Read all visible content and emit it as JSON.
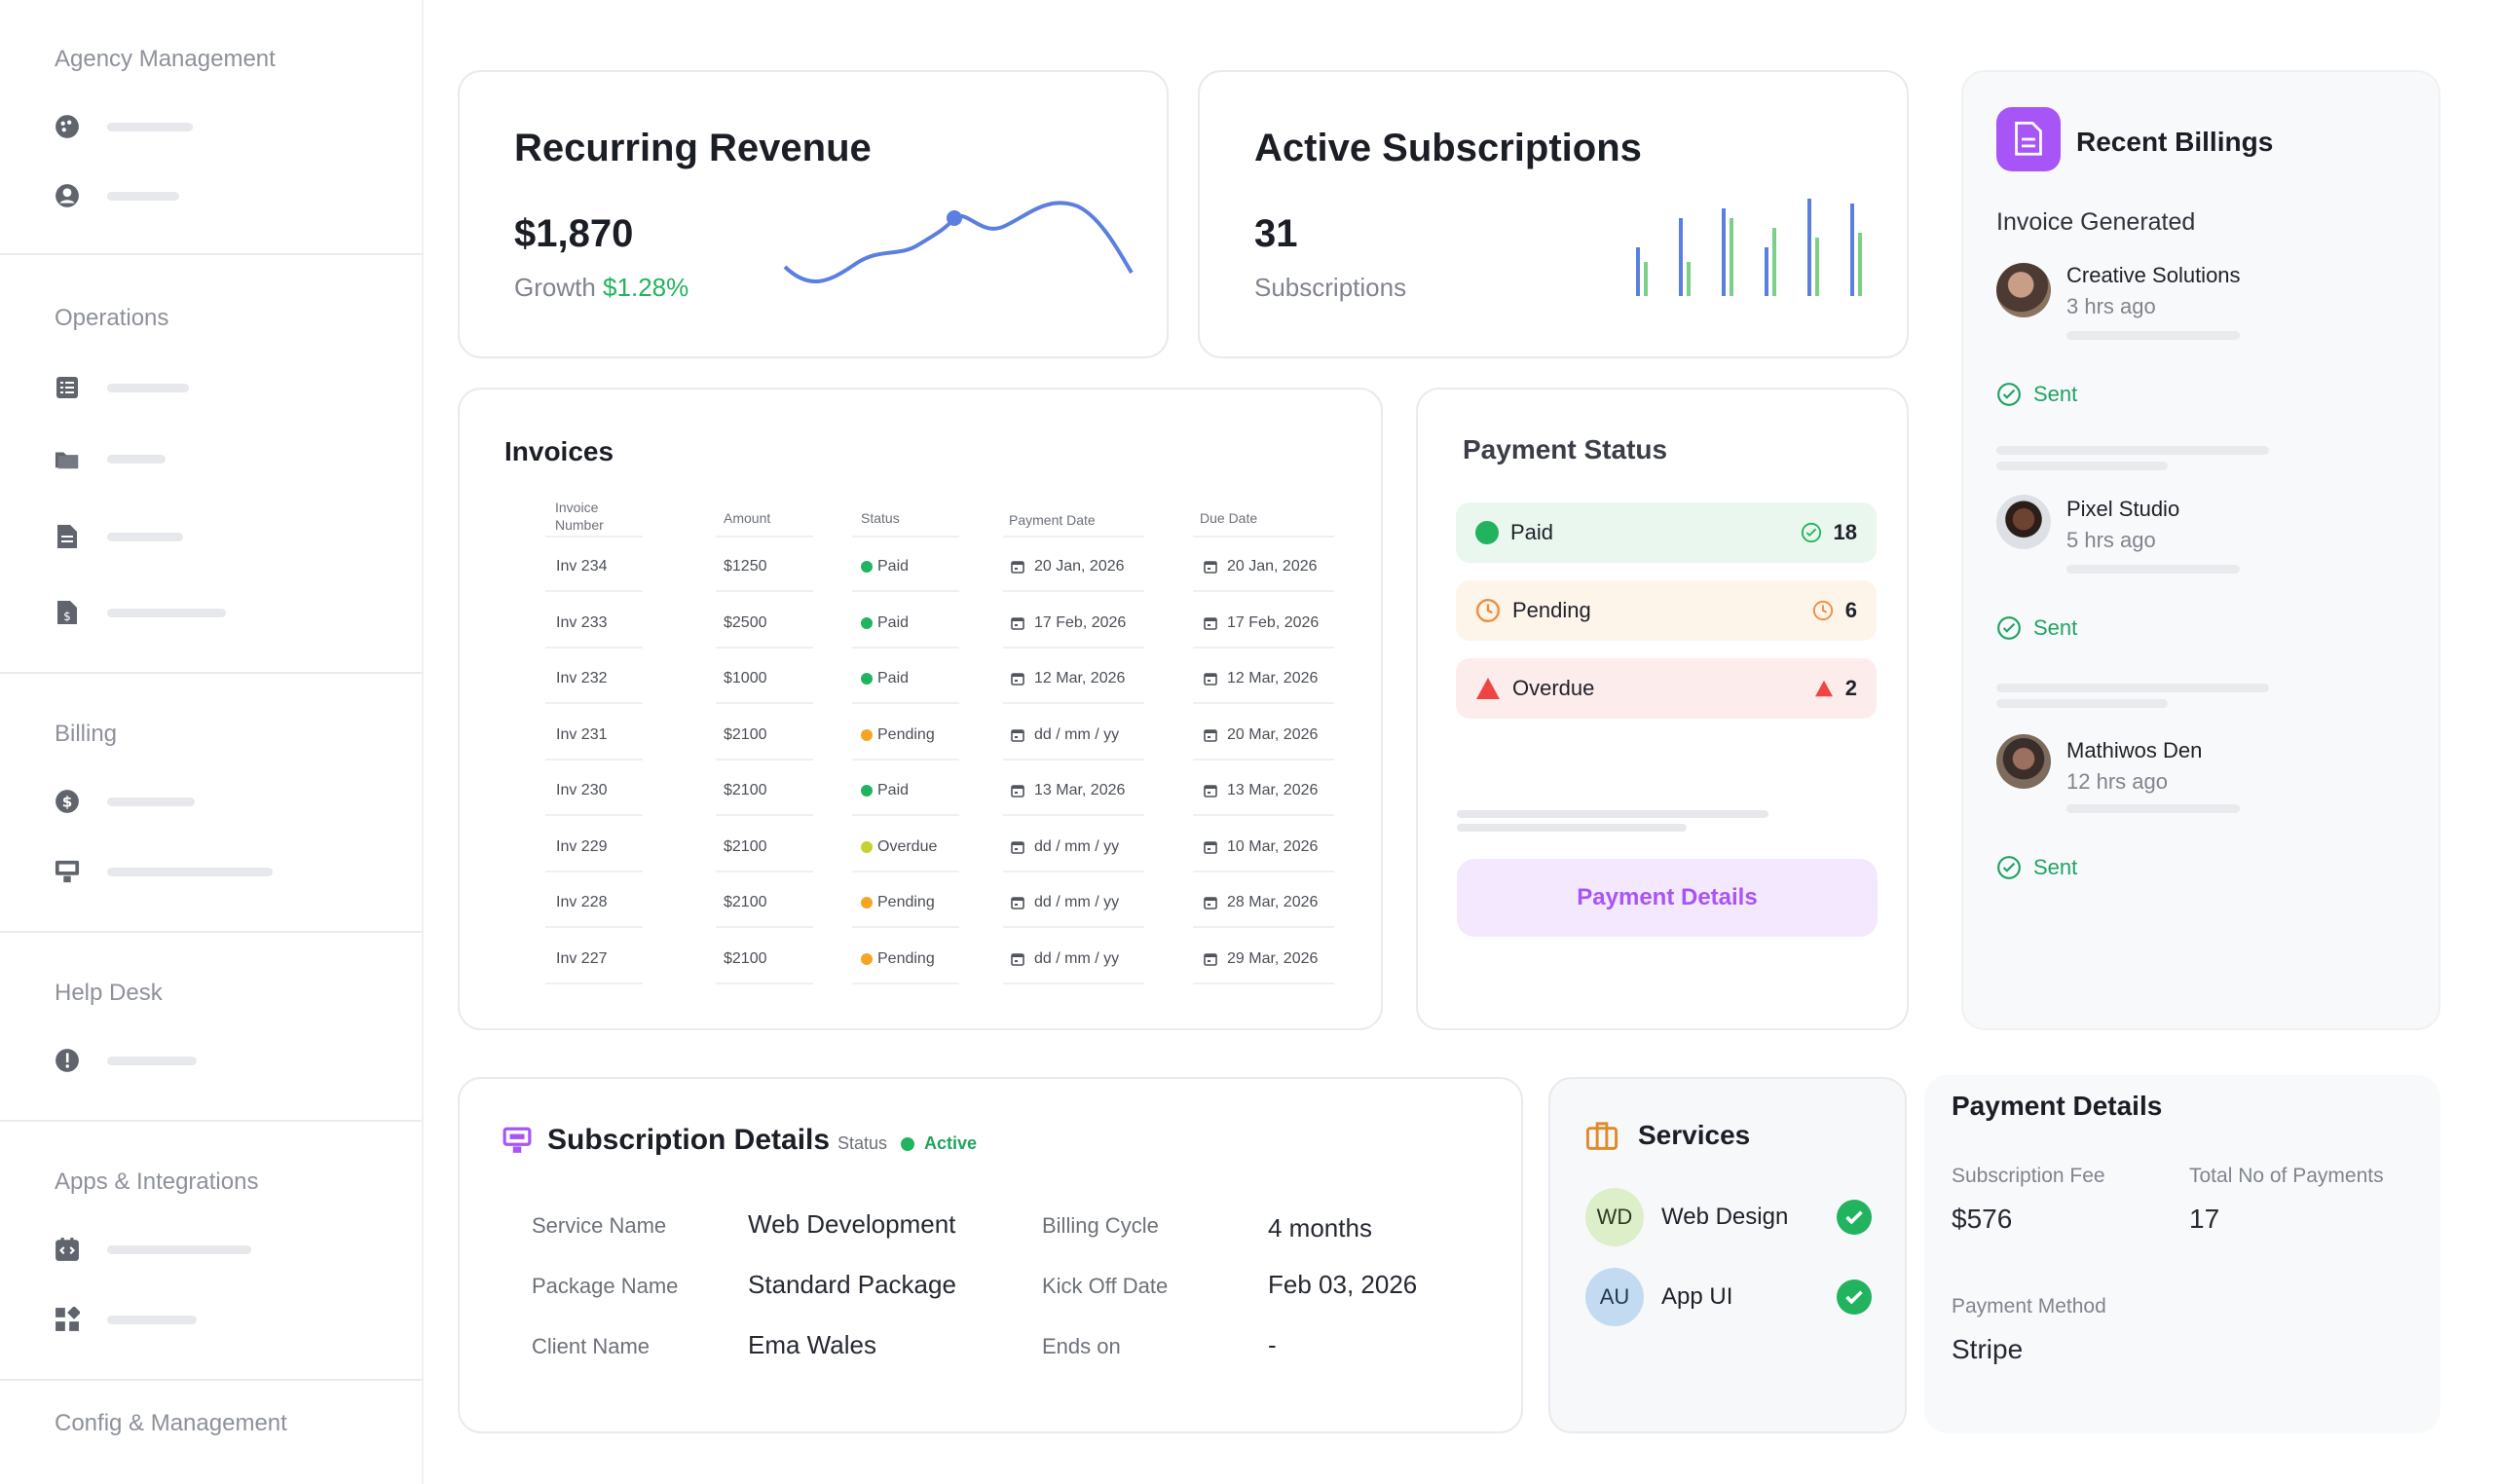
{
  "sidebar": {
    "sections": [
      {
        "title": "Agency Management"
      },
      {
        "title": "Operations"
      },
      {
        "title": "Billing"
      },
      {
        "title": "Help Desk"
      },
      {
        "title": "Apps & Integrations"
      },
      {
        "title": "Config & Management"
      }
    ]
  },
  "recurring": {
    "title": "Recurring Revenue",
    "amount": "$1,870",
    "growth_label": "Growth",
    "growth_value": "$1.28%"
  },
  "subscriptions": {
    "title": "Active Subscriptions",
    "count": "31",
    "label": "Subscriptions"
  },
  "billings": {
    "title": "Recent Billings",
    "subtitle": "Invoice Generated",
    "items": [
      {
        "name": "Creative Solutions",
        "time": "3 hrs ago",
        "status": "Sent"
      },
      {
        "name": "Pixel Studio",
        "time": "5 hrs ago",
        "status": "Sent"
      },
      {
        "name": "Mathiwos Den",
        "time": "12 hrs ago",
        "status": "Sent"
      }
    ]
  },
  "invoices": {
    "title": "Invoices",
    "columns": [
      "Invoice Number",
      "Amount",
      "Status",
      "Payment Date",
      "Due Date"
    ],
    "rows": [
      {
        "number": "Inv 234",
        "amount": "$1250",
        "status": "Paid",
        "payment_date": "20 Jan, 2026",
        "due_date": "20 Jan, 2026"
      },
      {
        "number": "Inv 233",
        "amount": "$2500",
        "status": "Paid",
        "payment_date": "17 Feb, 2026",
        "due_date": "17 Feb, 2026"
      },
      {
        "number": "Inv 232",
        "amount": "$1000",
        "status": "Paid",
        "payment_date": "12 Mar, 2026",
        "due_date": "12 Mar, 2026"
      },
      {
        "number": "Inv 231",
        "amount": "$2100",
        "status": "Pending",
        "payment_date": "dd / mm / yy",
        "due_date": "20 Mar, 2026"
      },
      {
        "number": "Inv 230",
        "amount": "$2100",
        "status": "Paid",
        "payment_date": "13 Mar, 2026",
        "due_date": "13 Mar, 2026"
      },
      {
        "number": "Inv 229",
        "amount": "$2100",
        "status": "Overdue",
        "payment_date": "dd / mm / yy",
        "due_date": "10 Mar, 2026"
      },
      {
        "number": "Inv 228",
        "amount": "$2100",
        "status": "Pending",
        "payment_date": "dd / mm / yy",
        "due_date": "28 Mar, 2026"
      },
      {
        "number": "Inv 227",
        "amount": "$2100",
        "status": "Pending",
        "payment_date": "dd / mm / yy",
        "due_date": "29 Mar, 2026"
      }
    ]
  },
  "payment_status": {
    "title": "Payment Status",
    "paid": {
      "label": "Paid",
      "count": "18"
    },
    "pending": {
      "label": "Pending",
      "count": "6"
    },
    "overdue": {
      "label": "Overdue",
      "count": "2"
    },
    "button": "Payment Details"
  },
  "subscription_details": {
    "title": "Subscription Details",
    "status_label": "Status",
    "status_value": "Active",
    "service_name_label": "Service Name",
    "service_name": "Web Development",
    "package_name_label": "Package Name",
    "package_name": "Standard Package",
    "client_name_label": "Client Name",
    "client_name": "Ema Wales",
    "billing_cycle_label": "Billing Cycle",
    "billing_cycle": "4 months",
    "kickoff_label": "Kick Off Date",
    "kickoff": "Feb 03, 2026",
    "ends_label": "Ends on",
    "ends": "-"
  },
  "services": {
    "title": "Services",
    "items": [
      {
        "initials": "WD",
        "name": "Web Design"
      },
      {
        "initials": "AU",
        "name": "App UI"
      }
    ]
  },
  "payment_details": {
    "title": "Payment Details",
    "fee_label": "Subscription Fee",
    "fee": "$576",
    "total_label": "Total No of Payments",
    "total": "17",
    "method_label": "Payment Method",
    "method": "Stripe"
  },
  "colors": {
    "accent_green": "#22b35e",
    "brand_purple": "#a855f7",
    "line_blue": "#5b7fe0"
  }
}
